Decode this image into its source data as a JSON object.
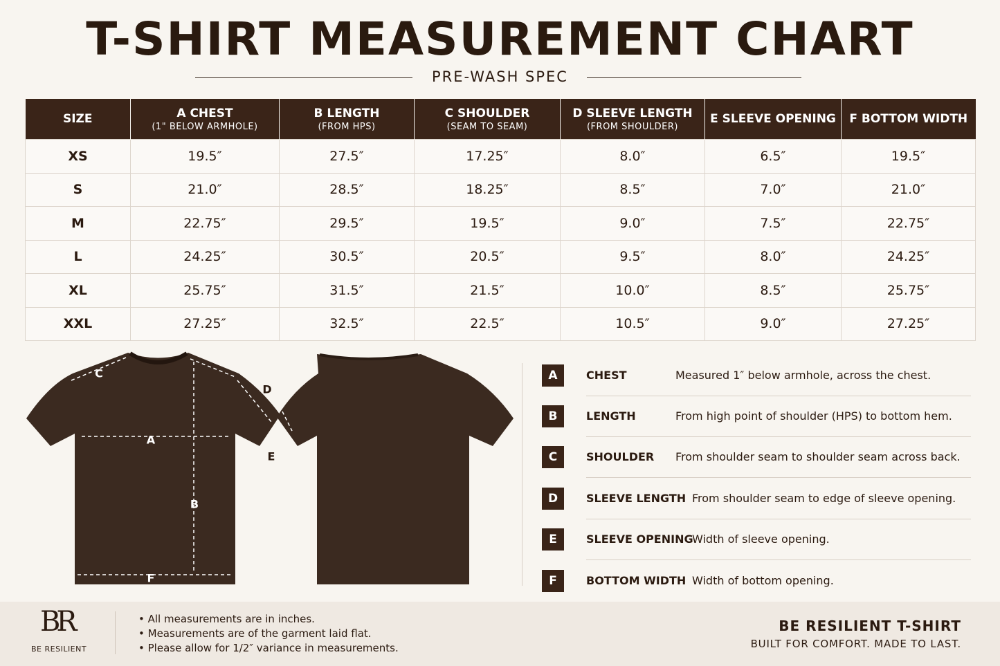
{
  "header": {
    "title": "T-SHIRT MEASUREMENT CHART",
    "subtitle": "PRE-WASH SPEC"
  },
  "table": {
    "columns": [
      {
        "label": "SIZE"
      },
      {
        "label": "A CHEST",
        "sub": "(1\" BELOW ARMHOLE)"
      },
      {
        "label": "B LENGTH",
        "sub": "(FROM HPS)"
      },
      {
        "label": "C SHOULDER",
        "sub": "(SEAM TO SEAM)"
      },
      {
        "label": "D SLEEVE LENGTH",
        "sub": "(FROM SHOULDER)"
      },
      {
        "label": "E SLEEVE OPENING"
      },
      {
        "label": "F BOTTOM WIDTH"
      }
    ],
    "rows": [
      [
        "XS",
        "19.5″",
        "27.5″",
        "17.25″",
        "8.0″",
        "6.5″",
        "19.5″"
      ],
      [
        "S",
        "21.0″",
        "28.5″",
        "18.25″",
        "8.5″",
        "7.0″",
        "21.0″"
      ],
      [
        "M",
        "22.75″",
        "29.5″",
        "19.5″",
        "9.0″",
        "7.5″",
        "22.75″"
      ],
      [
        "L",
        "24.25″",
        "30.5″",
        "20.5″",
        "9.5″",
        "8.0″",
        "24.25″"
      ],
      [
        "XL",
        "25.75″",
        "31.5″",
        "21.5″",
        "10.0″",
        "8.5″",
        "25.75″"
      ],
      [
        "XXL",
        "27.25″",
        "32.5″",
        "22.5″",
        "10.5″",
        "9.0″",
        "27.25″"
      ]
    ]
  },
  "legend": {
    "items": [
      {
        "letter": "A",
        "name": "CHEST",
        "description": "Measured 1″ below armhole, across the chest."
      },
      {
        "letter": "B",
        "name": "LENGTH",
        "description": "From high point of shoulder (HPS) to bottom hem."
      },
      {
        "letter": "C",
        "name": "SHOULDER",
        "description": "From shoulder seam to shoulder seam across back."
      },
      {
        "letter": "D",
        "name": "SLEEVE LENGTH",
        "description": "From shoulder seam to edge of sleeve opening."
      },
      {
        "letter": "E",
        "name": "SLEEVE OPENING",
        "description": "Width of sleeve opening."
      },
      {
        "letter": "F",
        "name": "BOTTOM WIDTH",
        "description": "Width of bottom opening."
      }
    ]
  },
  "footer": {
    "logo": "BR",
    "brand": "BE RESILIENT",
    "notes": [
      "All measurements are in inches.",
      "Measurements are of the garment laid flat.",
      "Please allow for 1/2″ variance in measurements."
    ],
    "product": "BE RESILIENT T-SHIRT",
    "tagline": "BUILT FOR COMFORT. MADE TO LAST."
  }
}
